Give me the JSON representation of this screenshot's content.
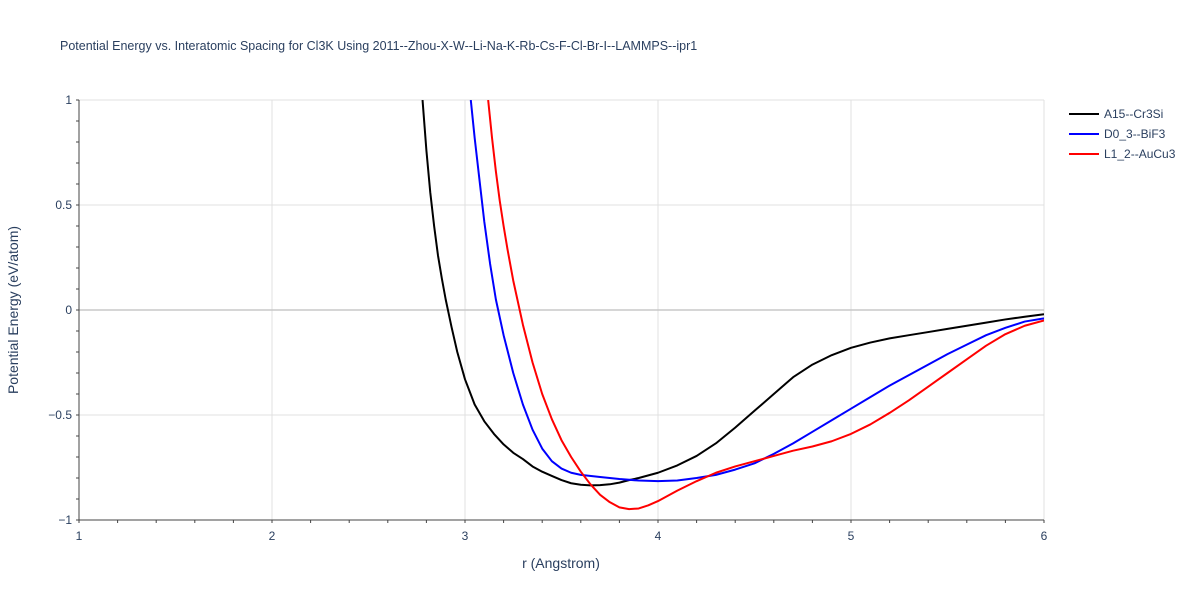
{
  "chart_data": {
    "type": "line",
    "title": "Potential Energy vs. Interatomic Spacing for Cl3K Using 2011--Zhou-X-W--Li-Na-K-Rb-Cs-F-Cl-Br-I--LAMMPS--ipr1",
    "xlabel": "r (Angstrom)",
    "ylabel": "Potential Energy (eV/atom)",
    "xlim": [
      1,
      6
    ],
    "ylim": [
      -1,
      1
    ],
    "xticks": [
      1,
      2,
      3,
      4,
      5,
      6
    ],
    "xtick_labels": [
      "1",
      "2",
      "3",
      "4",
      "5",
      "6"
    ],
    "yticks": [
      -1,
      -0.5,
      0,
      0.5,
      1
    ],
    "ytick_labels": [
      "−1",
      "−0.5",
      "0",
      "0.5",
      "1"
    ],
    "grid": true,
    "legend_position": "top-right",
    "series": [
      {
        "name": "A15--Cr3Si",
        "color": "#000000",
        "x": [
          2.78,
          2.8,
          2.82,
          2.84,
          2.86,
          2.88,
          2.9,
          2.93,
          2.96,
          3.0,
          3.05,
          3.1,
          3.15,
          3.2,
          3.25,
          3.3,
          3.35,
          3.4,
          3.45,
          3.5,
          3.55,
          3.6,
          3.65,
          3.7,
          3.75,
          3.8,
          3.85,
          3.9,
          4.0,
          4.1,
          4.2,
          4.3,
          4.4,
          4.5,
          4.6,
          4.7,
          4.8,
          4.9,
          5.0,
          5.1,
          5.2,
          5.3,
          5.4,
          5.5,
          5.6,
          5.7,
          5.8,
          5.9,
          6.0
        ],
        "y": [
          1.0,
          0.76,
          0.56,
          0.4,
          0.26,
          0.15,
          0.05,
          -0.08,
          -0.2,
          -0.33,
          -0.45,
          -0.53,
          -0.59,
          -0.64,
          -0.68,
          -0.71,
          -0.745,
          -0.77,
          -0.79,
          -0.81,
          -0.825,
          -0.832,
          -0.835,
          -0.834,
          -0.83,
          -0.822,
          -0.81,
          -0.8,
          -0.775,
          -0.74,
          -0.695,
          -0.635,
          -0.56,
          -0.48,
          -0.4,
          -0.32,
          -0.26,
          -0.215,
          -0.18,
          -0.155,
          -0.135,
          -0.12,
          -0.105,
          -0.09,
          -0.075,
          -0.06,
          -0.045,
          -0.032,
          -0.02
        ]
      },
      {
        "name": "D0_3--BiF3",
        "color": "#0000ff",
        "x": [
          3.03,
          3.05,
          3.08,
          3.1,
          3.13,
          3.16,
          3.2,
          3.25,
          3.3,
          3.35,
          3.4,
          3.45,
          3.5,
          3.55,
          3.6,
          3.7,
          3.8,
          3.9,
          4.0,
          4.1,
          4.2,
          4.3,
          4.4,
          4.5,
          4.6,
          4.7,
          4.8,
          4.9,
          5.0,
          5.1,
          5.2,
          5.3,
          5.4,
          5.5,
          5.6,
          5.7,
          5.8,
          5.9,
          6.0
        ],
        "y": [
          1.0,
          0.82,
          0.58,
          0.42,
          0.22,
          0.05,
          -0.12,
          -0.3,
          -0.45,
          -0.57,
          -0.66,
          -0.72,
          -0.755,
          -0.775,
          -0.785,
          -0.795,
          -0.805,
          -0.812,
          -0.815,
          -0.812,
          -0.8,
          -0.785,
          -0.76,
          -0.73,
          -0.685,
          -0.635,
          -0.58,
          -0.525,
          -0.47,
          -0.415,
          -0.36,
          -0.31,
          -0.26,
          -0.21,
          -0.165,
          -0.12,
          -0.085,
          -0.055,
          -0.04
        ]
      },
      {
        "name": "L1_2--AuCu3",
        "color": "#ff0000",
        "x": [
          3.12,
          3.14,
          3.16,
          3.18,
          3.2,
          3.22,
          3.25,
          3.3,
          3.35,
          3.4,
          3.45,
          3.5,
          3.55,
          3.6,
          3.65,
          3.7,
          3.75,
          3.8,
          3.85,
          3.9,
          3.95,
          4.0,
          4.1,
          4.2,
          4.3,
          4.4,
          4.5,
          4.6,
          4.7,
          4.8,
          4.9,
          5.0,
          5.1,
          5.2,
          5.3,
          5.4,
          5.5,
          5.6,
          5.7,
          5.8,
          5.9,
          6.0
        ],
        "y": [
          1.0,
          0.82,
          0.66,
          0.52,
          0.4,
          0.29,
          0.14,
          -0.07,
          -0.25,
          -0.4,
          -0.52,
          -0.62,
          -0.7,
          -0.77,
          -0.83,
          -0.88,
          -0.915,
          -0.94,
          -0.948,
          -0.945,
          -0.93,
          -0.91,
          -0.86,
          -0.815,
          -0.775,
          -0.745,
          -0.72,
          -0.695,
          -0.67,
          -0.65,
          -0.625,
          -0.59,
          -0.545,
          -0.49,
          -0.43,
          -0.365,
          -0.3,
          -0.235,
          -0.17,
          -0.115,
          -0.075,
          -0.05
        ]
      }
    ]
  }
}
